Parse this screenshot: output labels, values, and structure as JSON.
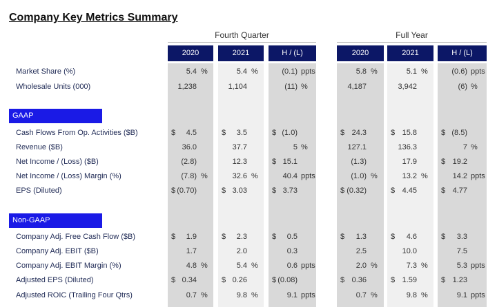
{
  "title": "Company Key Metrics Summary",
  "groups": [
    {
      "label": "Fourth Quarter",
      "columns": [
        "2020",
        "2021",
        "H / (L)"
      ]
    },
    {
      "label": "Full Year",
      "columns": [
        "2020",
        "2021",
        "H / (L)"
      ]
    }
  ],
  "sections": [
    {
      "rows": [
        {
          "label": "Market Share (%)",
          "cells": [
            {
              "num": "5.4",
              "suf": "%"
            },
            {
              "num": "5.4",
              "suf": "%"
            },
            {
              "num": "(0.1)",
              "suf": "ppts"
            },
            {
              "num": "5.8",
              "suf": "%"
            },
            {
              "num": "5.1",
              "suf": "%"
            },
            {
              "num": "(0.6)",
              "suf": "ppts"
            }
          ]
        },
        {
          "label": "Wholesale Units (000)",
          "cells": [
            {
              "num": "1,238"
            },
            {
              "num": "1,104"
            },
            {
              "num": "(11)",
              "suf": "%"
            },
            {
              "num": "4,187"
            },
            {
              "num": "3,942"
            },
            {
              "num": "(6)",
              "suf": "%"
            }
          ]
        }
      ]
    },
    {
      "title": "GAAP",
      "rows": [
        {
          "label": "Cash Flows From Op. Activities ($B)",
          "cells": [
            {
              "pre": "$",
              "num": "4.5"
            },
            {
              "pre": "$",
              "num": "3.5"
            },
            {
              "pre": "$",
              "num": "(1.0)"
            },
            {
              "pre": "$",
              "num": "24.3"
            },
            {
              "pre": "$",
              "num": "15.8"
            },
            {
              "pre": "$",
              "num": "(8.5)"
            }
          ]
        },
        {
          "label": "Revenue ($B)",
          "cells": [
            {
              "num": "36.0"
            },
            {
              "num": "37.7"
            },
            {
              "num": "5",
              "suf": "%"
            },
            {
              "num": "127.1"
            },
            {
              "num": "136.3"
            },
            {
              "num": "7",
              "suf": "%"
            }
          ]
        },
        {
          "label": "Net Income / (Loss) ($B)",
          "cells": [
            {
              "num": "(2.8)"
            },
            {
              "num": "12.3"
            },
            {
              "pre": "$",
              "num": "15.1"
            },
            {
              "num": "(1.3)"
            },
            {
              "num": "17.9"
            },
            {
              "pre": "$",
              "num": "19.2"
            }
          ]
        },
        {
          "label": "Net Income / (Loss) Margin (%)",
          "cells": [
            {
              "num": "(7.8)",
              "suf": "%"
            },
            {
              "num": "32.6",
              "suf": "%"
            },
            {
              "num": "40.4",
              "suf": "ppts"
            },
            {
              "num": "(1.0)",
              "suf": "%"
            },
            {
              "num": "13.2",
              "suf": "%"
            },
            {
              "num": "14.2",
              "suf": "ppts"
            }
          ]
        },
        {
          "label": "EPS (Diluted)",
          "cells": [
            {
              "pre": "$",
              "num": "(0.70)"
            },
            {
              "pre": "$",
              "num": "3.03"
            },
            {
              "pre": "$",
              "num": "3.73"
            },
            {
              "pre": "$",
              "num": "(0.32)"
            },
            {
              "pre": "$",
              "num": "4.45"
            },
            {
              "pre": "$",
              "num": "4.77"
            }
          ]
        }
      ]
    },
    {
      "title": "Non-GAAP",
      "rows": [
        {
          "label": "Company Adj. Free Cash Flow ($B)",
          "cells": [
            {
              "pre": "$",
              "num": "1.9"
            },
            {
              "pre": "$",
              "num": "2.3"
            },
            {
              "pre": "$",
              "num": "0.5"
            },
            {
              "pre": "$",
              "num": "1.3"
            },
            {
              "pre": "$",
              "num": "4.6"
            },
            {
              "pre": "$",
              "num": "3.3"
            }
          ]
        },
        {
          "label": "Company Adj. EBIT ($B)",
          "cells": [
            {
              "num": "1.7"
            },
            {
              "num": "2.0"
            },
            {
              "num": "0.3"
            },
            {
              "num": "2.5"
            },
            {
              "num": "10.0"
            },
            {
              "num": "7.5"
            }
          ]
        },
        {
          "label": "Company Adj. EBIT Margin (%)",
          "cells": [
            {
              "num": "4.8",
              "suf": "%"
            },
            {
              "num": "5.4",
              "suf": "%"
            },
            {
              "num": "0.6",
              "suf": "ppts"
            },
            {
              "num": "2.0",
              "suf": "%"
            },
            {
              "num": "7.3",
              "suf": "%"
            },
            {
              "num": "5.3",
              "suf": "ppts"
            }
          ]
        },
        {
          "label": "Adjusted EPS (Diluted)",
          "cells": [
            {
              "pre": "$",
              "num": "0.34"
            },
            {
              "pre": "$",
              "num": "0.26"
            },
            {
              "pre": "$",
              "num": "(0.08)"
            },
            {
              "pre": "$",
              "num": "0.36"
            },
            {
              "pre": "$",
              "num": "1.59"
            },
            {
              "pre": "$",
              "num": "1.23"
            }
          ]
        },
        {
          "label": "Adjusted ROIC (Trailing Four Qtrs)",
          "cells": [
            {
              "num": "0.7",
              "suf": "%"
            },
            {
              "num": "9.8",
              "suf": "%"
            },
            {
              "num": "9.1",
              "suf": "ppts"
            },
            {
              "num": "0.7",
              "suf": "%"
            },
            {
              "num": "9.8",
              "suf": "%"
            },
            {
              "num": "9.1",
              "suf": "ppts"
            }
          ]
        }
      ]
    }
  ]
}
